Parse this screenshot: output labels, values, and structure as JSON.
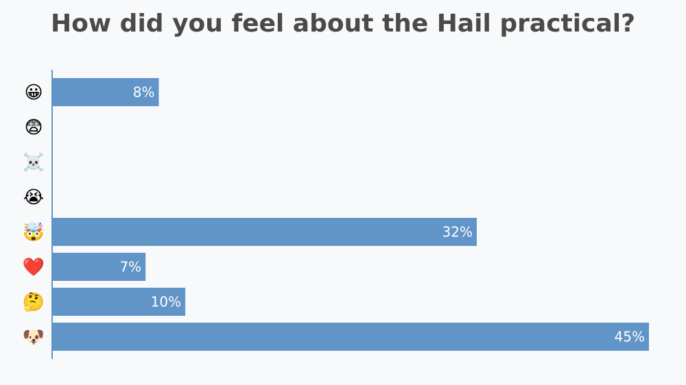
{
  "chart_data": {
    "type": "bar",
    "orientation": "horizontal",
    "title": "How did you feel about the Hail practical?",
    "categories": [
      "😀",
      "😨",
      "☠️",
      "😭",
      "🤯",
      "❤️",
      "🤔",
      "🐶"
    ],
    "values": [
      8,
      0,
      0,
      0,
      32,
      7,
      10,
      45
    ],
    "value_labels": [
      "8%",
      "",
      "",
      "",
      "32%",
      "7%",
      "10%",
      "45%"
    ],
    "xlim": [
      0,
      45
    ],
    "grid": false,
    "bar_color": "#6194c7",
    "axis_color": "#6194c7",
    "title_color": "#4a4a4a"
  }
}
